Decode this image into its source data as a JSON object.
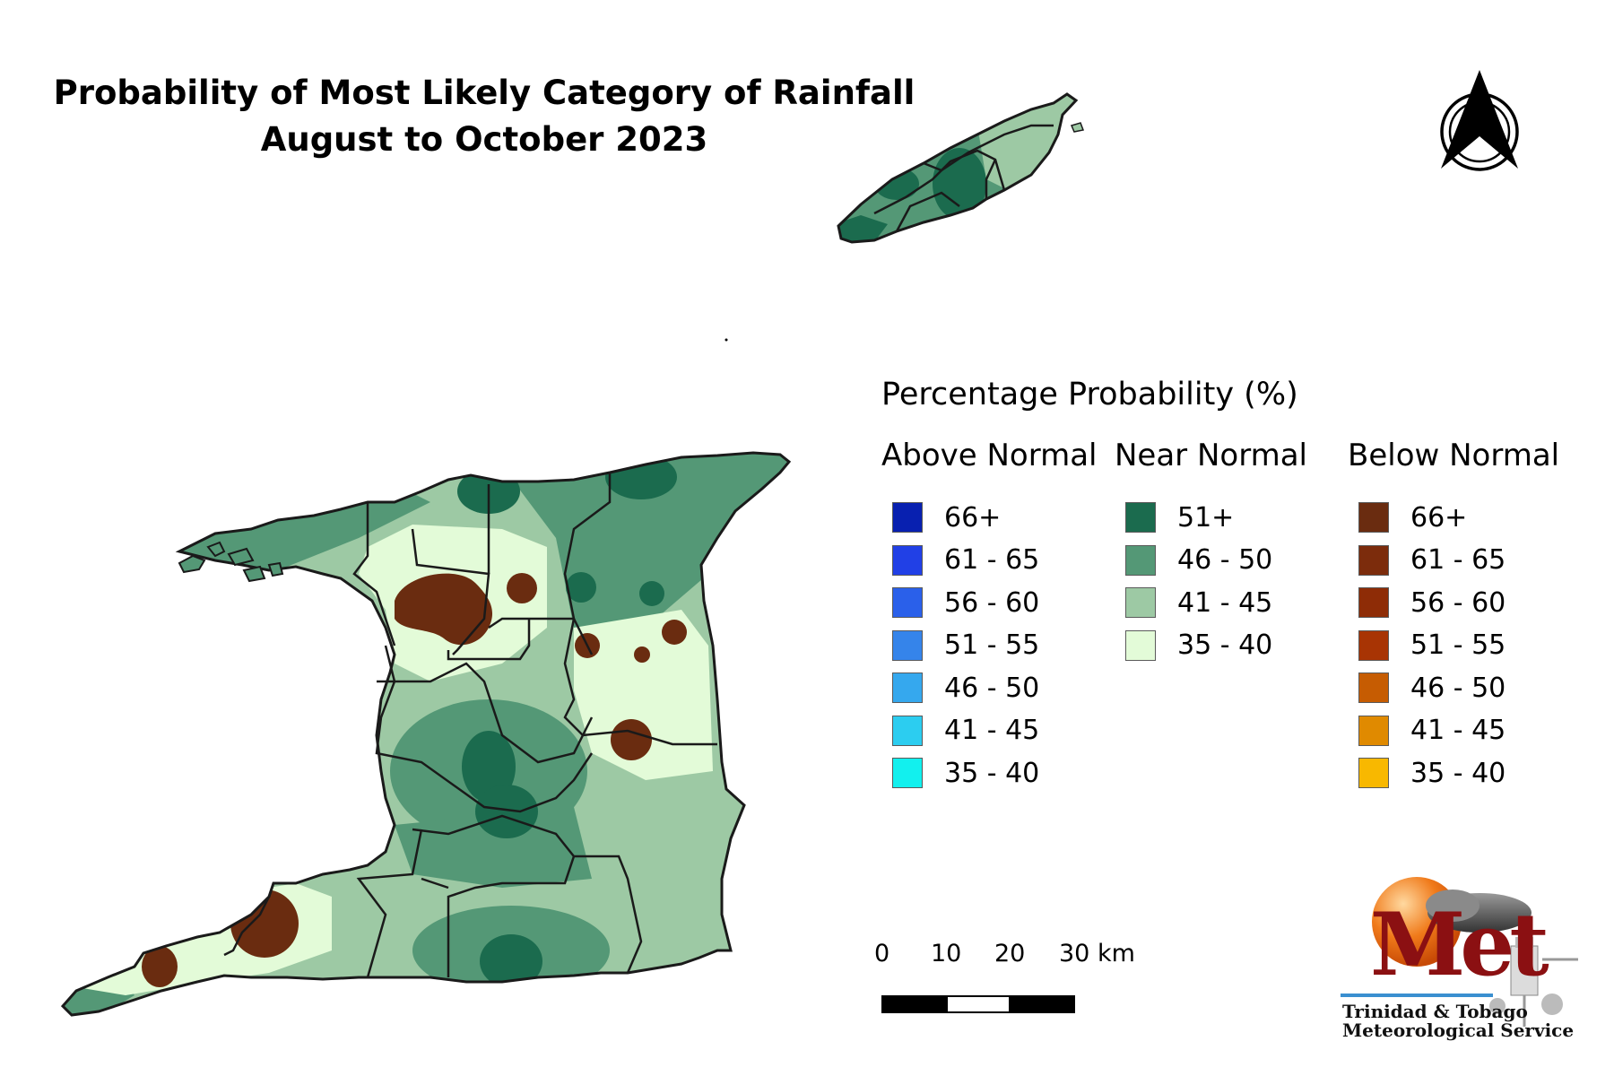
{
  "title": {
    "line1": "Probability of Most Likely Category of Rainfall",
    "line2": "August to October 2023"
  },
  "legend": {
    "title": "Percentage Probability (%)",
    "columns": [
      {
        "heading": "Above Normal",
        "items": [
          {
            "label": "66+",
            "color": "#0820b0"
          },
          {
            "label": "61 - 65",
            "color": "#2140e6"
          },
          {
            "label": "56 - 60",
            "color": "#2a60ea"
          },
          {
            "label": "51 - 55",
            "color": "#3584ea"
          },
          {
            "label": "46 - 50",
            "color": "#35a8ee"
          },
          {
            "label": "41 - 45",
            "color": "#2ccdf0"
          },
          {
            "label": "35 - 40",
            "color": "#12f0ee"
          }
        ]
      },
      {
        "heading": "Near Normal",
        "items": [
          {
            "label": "51+",
            "color": "#1b6b4e"
          },
          {
            "label": "46 - 50",
            "color": "#549876"
          },
          {
            "label": "41 - 45",
            "color": "#9dc9a4"
          },
          {
            "label": "35 - 40",
            "color": "#e3fbd8"
          }
        ]
      },
      {
        "heading": "Below Normal",
        "items": [
          {
            "label": "66+",
            "color": "#6a2c10"
          },
          {
            "label": "61 - 65",
            "color": "#7c2c0c"
          },
          {
            "label": "56 - 60",
            "color": "#8e2c06"
          },
          {
            "label": "51 - 55",
            "color": "#a83404"
          },
          {
            "label": "46 - 50",
            "color": "#c65c02"
          },
          {
            "label": "41 - 45",
            "color": "#e08a00"
          },
          {
            "label": "35 - 40",
            "color": "#f8b800"
          }
        ]
      }
    ]
  },
  "scale_bar": {
    "ticks": [
      "0",
      "10",
      "20",
      "30 km"
    ]
  },
  "logo": {
    "word": "Met",
    "caption_line1": "Trinidad & Tobago",
    "caption_line2": "Meteorological Service"
  },
  "map_colors": {
    "near_51_plus": "#1b6b4e",
    "near_46_50": "#549876",
    "near_41_45": "#9dc9a4",
    "near_35_40": "#e3fbd8",
    "below_66_plus": "#6a2c10",
    "boundary": "#1a1a1a"
  }
}
